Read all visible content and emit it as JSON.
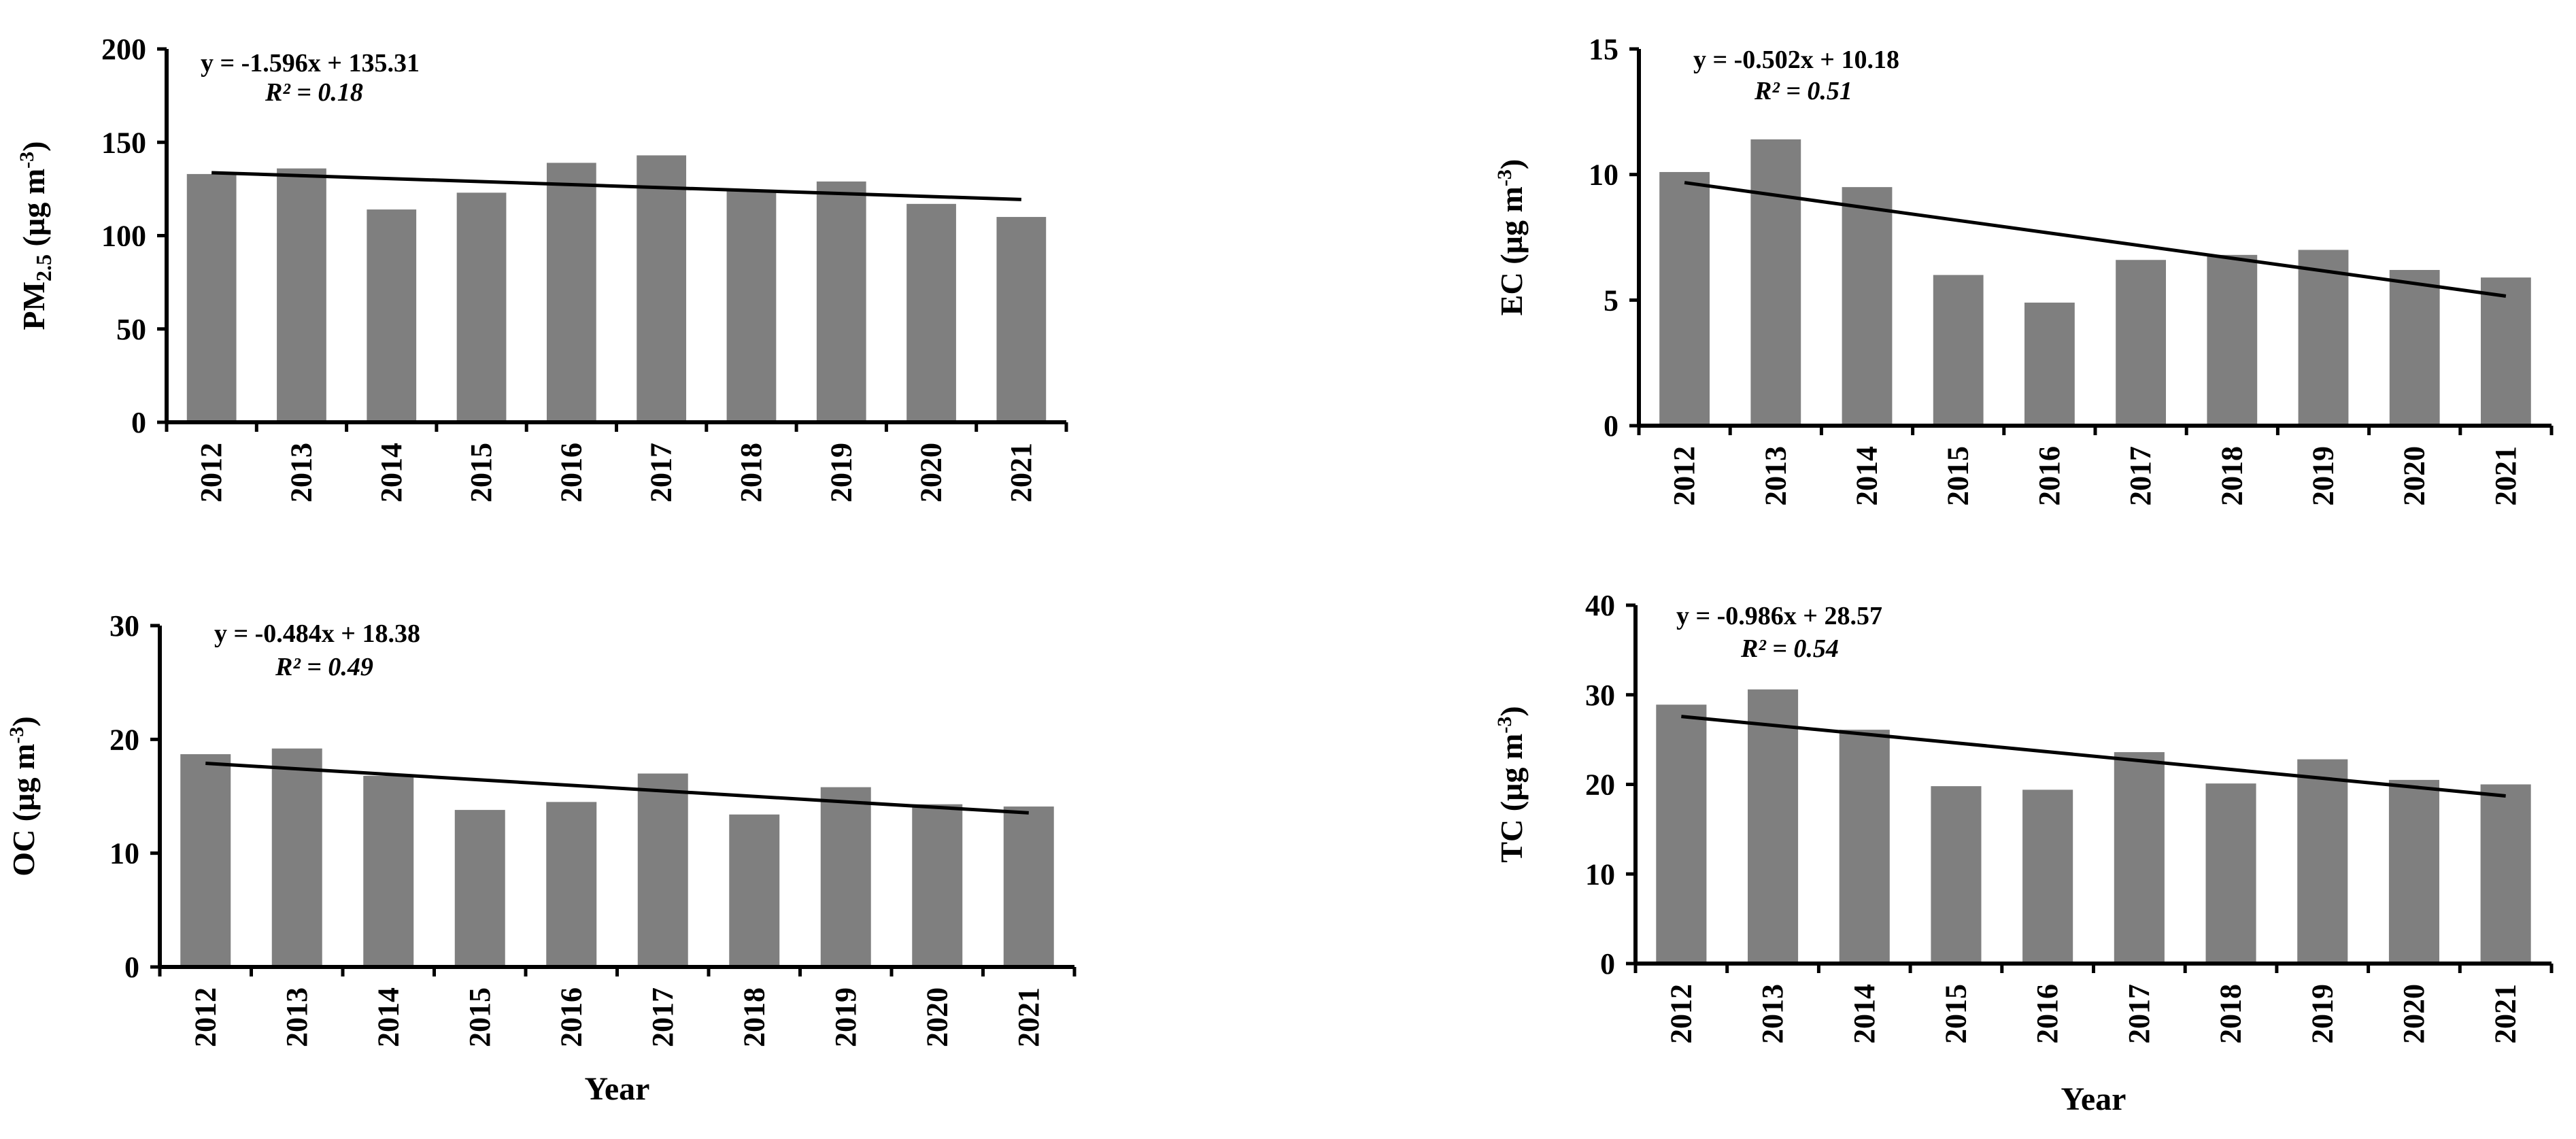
{
  "chart_data": [
    {
      "type": "bar",
      "title": "",
      "xlabel": "",
      "ylabel_main": "PM",
      "ylabel_sub": "2.5",
      "ylabel_unit": " (µg m",
      "ylabel_exp": "-3",
      "ylabel_close": ")",
      "categories": [
        "2012",
        "2013",
        "2014",
        "2015",
        "2016",
        "2017",
        "2018",
        "2019",
        "2020",
        "2021"
      ],
      "values": [
        133,
        136,
        114,
        123,
        139,
        143,
        124,
        129,
        117,
        110
      ],
      "ylim": [
        0,
        200
      ],
      "yticks": [
        0,
        50,
        100,
        150,
        200
      ],
      "trendline": {
        "slope": -1.596,
        "intercept": 135.31
      },
      "equation": "y = -1.596x + 135.31",
      "r2_label": "R² = 0.18"
    },
    {
      "type": "bar",
      "title": "",
      "xlabel": "",
      "ylabel_main": "EC",
      "ylabel_sub": "",
      "ylabel_unit": " (µg m",
      "ylabel_exp": "-3",
      "ylabel_close": ")",
      "categories": [
        "2012",
        "2013",
        "2014",
        "2015",
        "2016",
        "2017",
        "2018",
        "2019",
        "2020",
        "2021"
      ],
      "values": [
        10.1,
        11.4,
        9.5,
        6.0,
        4.9,
        6.6,
        6.8,
        7.0,
        6.2,
        5.9
      ],
      "ylim": [
        0,
        15
      ],
      "yticks": [
        0,
        5,
        10,
        15
      ],
      "trendline": {
        "slope": -0.502,
        "intercept": 10.18
      },
      "equation": "y = -0.502x + 10.18",
      "r2_label": "R² = 0.51"
    },
    {
      "type": "bar",
      "title": "",
      "xlabel": "Year",
      "ylabel_main": "OC",
      "ylabel_sub": "",
      "ylabel_unit": " (µg m",
      "ylabel_exp": "-3",
      "ylabel_close": ")",
      "categories": [
        "2012",
        "2013",
        "2014",
        "2015",
        "2016",
        "2017",
        "2018",
        "2019",
        "2020",
        "2021"
      ],
      "values": [
        18.7,
        19.2,
        16.8,
        13.8,
        14.5,
        17.0,
        13.4,
        15.8,
        14.3,
        14.1
      ],
      "ylim": [
        0,
        30
      ],
      "yticks": [
        0,
        10,
        20,
        30
      ],
      "trendline": {
        "slope": -0.484,
        "intercept": 18.38
      },
      "equation": "y = -0.484x + 18.38",
      "r2_label": "R² = 0.49"
    },
    {
      "type": "bar",
      "title": "",
      "xlabel": "Year",
      "ylabel_main": "TC",
      "ylabel_sub": "",
      "ylabel_unit": " (µg m",
      "ylabel_exp": "-3",
      "ylabel_close": ")",
      "categories": [
        "2012",
        "2013",
        "2014",
        "2015",
        "2016",
        "2017",
        "2018",
        "2019",
        "2020",
        "2021"
      ],
      "values": [
        28.9,
        30.6,
        26.1,
        19.8,
        19.4,
        23.6,
        20.1,
        22.8,
        20.5,
        20.0
      ],
      "ylim": [
        0,
        40
      ],
      "yticks": [
        0,
        10,
        20,
        30,
        40
      ],
      "trendline": {
        "slope": -0.986,
        "intercept": 28.57
      },
      "equation": "y = -0.986x + 28.57",
      "r2_label": "R² = 0.54"
    }
  ],
  "colors": {
    "bar": "#7f7f7f",
    "axis": "#000000",
    "trendline": "#000000",
    "background": "#ffffff"
  }
}
